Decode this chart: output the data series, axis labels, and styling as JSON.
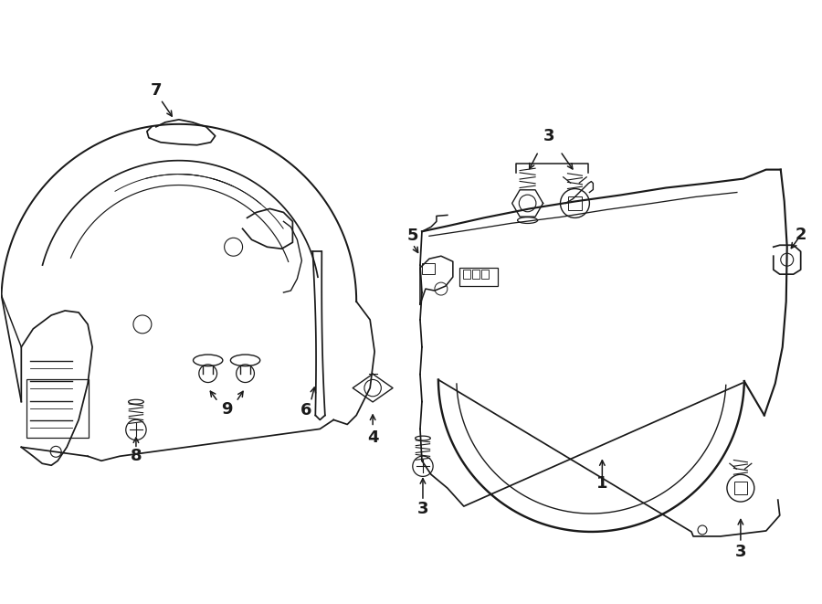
{
  "bg_color": "#ffffff",
  "line_color": "#1a1a1a",
  "fig_width": 9.0,
  "fig_height": 6.61,
  "dpi": 100,
  "lw": 1.25
}
